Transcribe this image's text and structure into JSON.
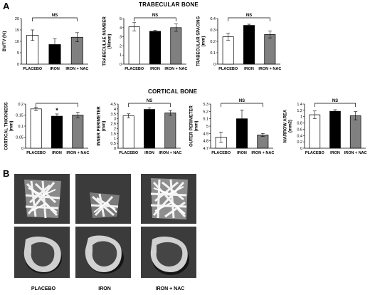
{
  "panels": {
    "a": "A",
    "b": "B"
  },
  "sections": {
    "trabecular": "TRABECULAR BONE",
    "cortical": "CORTICAL BONE"
  },
  "chart_data": [
    {
      "type": "bar",
      "ylabel": "BV/TV (%)",
      "categories": [
        "PLACEBO",
        "IRON",
        "IRON + NAC"
      ],
      "values": [
        12.7,
        8.6,
        11.8
      ],
      "errors": [
        2.3,
        2.5,
        2.0
      ],
      "ylim": [
        0,
        20
      ],
      "yticks": [
        0,
        5,
        10,
        15,
        20
      ],
      "significance": {
        "label": "NS",
        "from": 0,
        "to": 2
      }
    },
    {
      "type": "bar",
      "ylabel": "TRABECULAE NUMBER (N/mm)",
      "categories": [
        "PLACEBO",
        "IRON",
        "IRON + NAC"
      ],
      "values": [
        4.1,
        3.6,
        4.0
      ],
      "errors": [
        0.45,
        0.1,
        0.4
      ],
      "ylim": [
        0,
        5
      ],
      "yticks": [
        0,
        1,
        2,
        3,
        4,
        5
      ],
      "significance": {
        "label": "NS",
        "from": 0,
        "to": 2
      }
    },
    {
      "type": "bar",
      "ylabel": "TRABECULAR SPACING (mm)",
      "categories": [
        "PLACEBO",
        "IRON",
        "IRON + NAC"
      ],
      "values": [
        0.24,
        0.34,
        0.26
      ],
      "errors": [
        0.03,
        0.01,
        0.03
      ],
      "ylim": [
        0,
        0.4
      ],
      "yticks": [
        0,
        0.1,
        0.2,
        0.3,
        0.4
      ],
      "significance": {
        "label": "NS",
        "from": 0,
        "to": 2
      }
    },
    {
      "type": "bar",
      "ylabel": "CORTICAL THICKNESS (mm)",
      "categories": [
        "PLACEBO",
        "IRON",
        "IRON + NAC"
      ],
      "values": [
        0.178,
        0.145,
        0.15
      ],
      "errors": [
        0.008,
        0.01,
        0.012
      ],
      "ylim": [
        0,
        0.2
      ],
      "yticks": [
        0,
        0.05,
        0.1,
        0.15,
        0.2
      ],
      "significance": {
        "label": "*",
        "from": 0,
        "to": 2
      }
    },
    {
      "type": "bar",
      "ylabel": "INNER PERIMETER (mm)",
      "categories": [
        "PLACEBO",
        "IRON",
        "IRON + NAC"
      ],
      "values": [
        3.3,
        3.95,
        3.6
      ],
      "errors": [
        0.2,
        0.15,
        0.25
      ],
      "ylim": [
        0,
        4.5
      ],
      "yticks": [
        0,
        0.5,
        1,
        1.5,
        2,
        2.5,
        3,
        3.5,
        4,
        4.5
      ],
      "significance": {
        "label": "NS",
        "from": 0,
        "to": 2
      }
    },
    {
      "type": "bar",
      "ylabel": "OUTER PERIMETER (mm)",
      "categories": [
        "PLACEBO",
        "IRON",
        "IRON + NAC"
      ],
      "values": [
        4.85,
        5.1,
        4.88
      ],
      "errors": [
        0.07,
        0.12,
        0.02
      ],
      "ylim": [
        4.7,
        5.3
      ],
      "yticks": [
        4.7,
        4.8,
        4.9,
        5,
        5.1,
        5.2,
        5.3
      ],
      "significance": {
        "label": "NS",
        "from": 0,
        "to": 2
      }
    },
    {
      "type": "bar",
      "ylabel": "MARROW AREA (mm2)",
      "categories": [
        "PLACEBO",
        "IRON",
        "IRON + NAC"
      ],
      "values": [
        1.06,
        1.17,
        1.03
      ],
      "errors": [
        0.12,
        0.05,
        0.13
      ],
      "ylim": [
        0,
        1.4
      ],
      "yticks": [
        0,
        0.2,
        0.4,
        0.6,
        0.8,
        1,
        1.2,
        1.4
      ],
      "significance": {
        "label": "NS",
        "from": 0,
        "to": 2
      }
    }
  ],
  "bar_colors": [
    "#ffffff",
    "#000000",
    "#808080"
  ],
  "image_labels": [
    "PLACEBO",
    "IRON",
    "IRON + NAC"
  ]
}
